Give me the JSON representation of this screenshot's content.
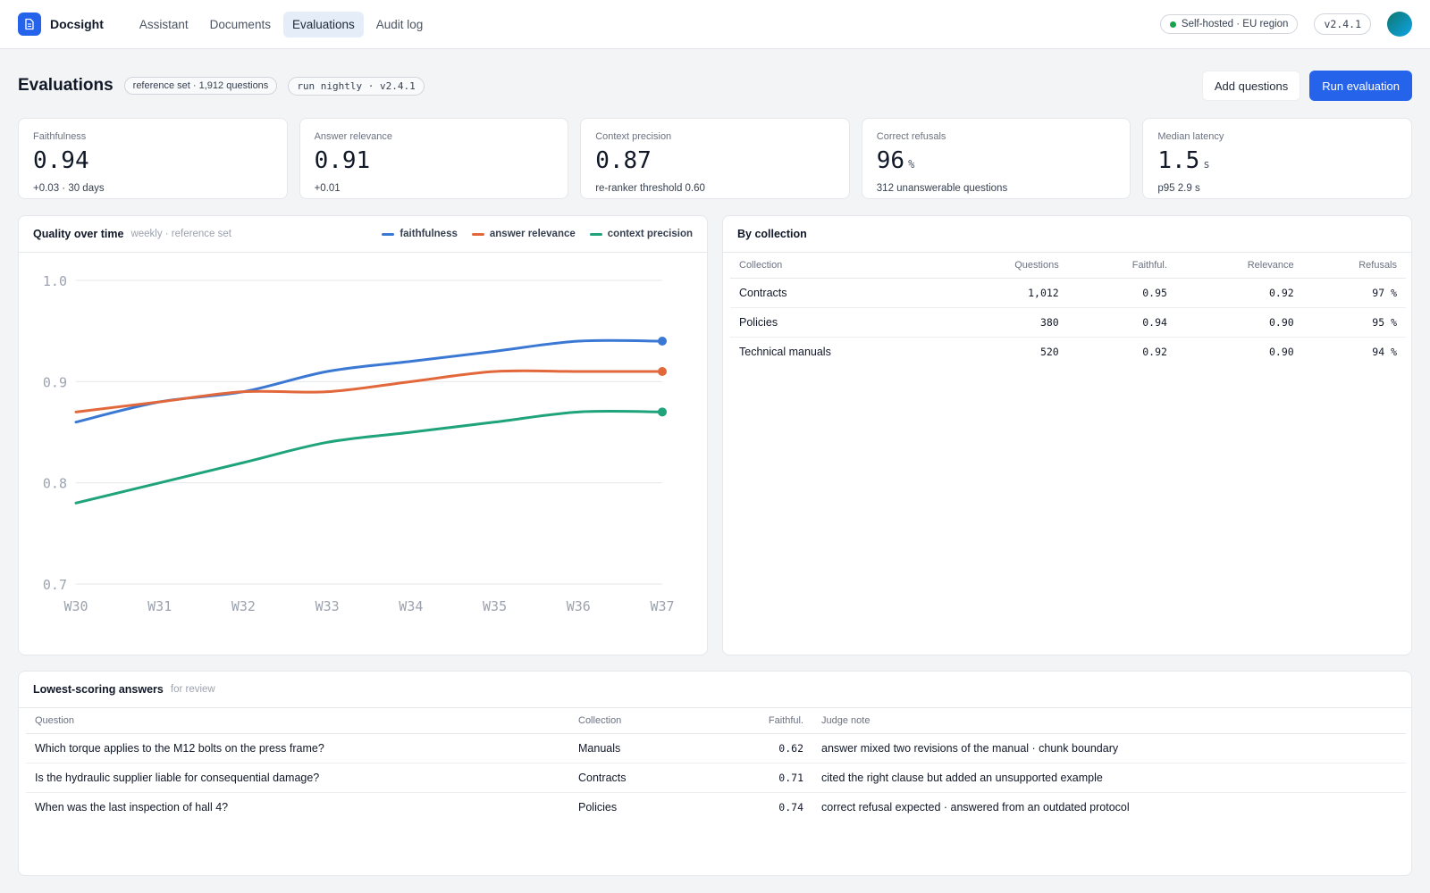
{
  "app": {
    "brand": "Docsight"
  },
  "nav": {
    "tabs": [
      {
        "label": "Assistant"
      },
      {
        "label": "Documents"
      },
      {
        "label": "Evaluations",
        "active": true
      },
      {
        "label": "Audit log"
      }
    ]
  },
  "topbar": {
    "region": "Self-hosted · EU region",
    "version": "v2.4.1"
  },
  "header": {
    "title": "Evaluations",
    "chip_reference": "reference set · 1,912 questions",
    "chip_run": "run nightly · v2.4.1",
    "add_label": "Add questions",
    "run_label": "Run evaluation"
  },
  "stats": [
    {
      "label": "Faithfulness",
      "value": "0.94",
      "unit": "",
      "sub": "+0.03 · 30 days"
    },
    {
      "label": "Answer relevance",
      "value": "0.91",
      "unit": "",
      "sub": "+0.01"
    },
    {
      "label": "Context precision",
      "value": "0.87",
      "unit": "",
      "sub": "re-ranker threshold 0.60"
    },
    {
      "label": "Correct refusals",
      "value": "96",
      "unit": "%",
      "sub": "312 unanswerable questions"
    },
    {
      "label": "Median latency",
      "value": "1.5",
      "unit": "s",
      "sub": "p95 2.9 s"
    }
  ],
  "quality": {
    "title": "Quality over time",
    "subtitle": "weekly · reference set"
  },
  "chart_data": {
    "type": "line",
    "x": [
      "W30",
      "W31",
      "W32",
      "W33",
      "W34",
      "W35",
      "W36",
      "W37"
    ],
    "ylim": [
      0.7,
      1.0
    ],
    "yticks": [
      "1.0",
      "0.9",
      "0.8",
      "0.7"
    ],
    "grid": true,
    "legend_position": "top-right",
    "series": [
      {
        "name": "faithfulness",
        "color": "#3a78d4",
        "values": [
          0.86,
          0.88,
          0.89,
          0.91,
          0.92,
          0.93,
          0.94,
          0.94
        ]
      },
      {
        "name": "answer relevance",
        "color": "#e2683c",
        "values": [
          0.87,
          0.88,
          0.89,
          0.89,
          0.9,
          0.91,
          0.91,
          0.91
        ]
      },
      {
        "name": "context precision",
        "color": "#1fa37a",
        "values": [
          0.78,
          0.8,
          0.82,
          0.84,
          0.85,
          0.86,
          0.87,
          0.87
        ]
      }
    ]
  },
  "collection": {
    "title": "By collection",
    "columns": [
      "Collection",
      "Questions",
      "Faithful.",
      "Relevance",
      "Refusals"
    ],
    "rows": [
      [
        "Contracts",
        "1,012",
        "0.95",
        "0.92",
        "97 %"
      ],
      [
        "Policies",
        "380",
        "0.94",
        "0.90",
        "95 %"
      ],
      [
        "Technical manuals",
        "520",
        "0.92",
        "0.90",
        "94 %"
      ]
    ]
  },
  "lowest": {
    "title": "Lowest-scoring answers",
    "subtitle": "for review",
    "columns": [
      "Question",
      "Collection",
      "Faithful.",
      "Judge note"
    ],
    "rows": [
      [
        "Which torque applies to the M12 bolts on the press frame?",
        "Manuals",
        "0.62",
        "answer mixed two revisions of the manual · chunk boundary"
      ],
      [
        "Is the hydraulic supplier liable for consequential damage?",
        "Contracts",
        "0.71",
        "cited the right clause but added an unsupported example"
      ],
      [
        "When was the last inspection of hall 4?",
        "Policies",
        "0.74",
        "correct refusal expected · answered from an outdated protocol"
      ]
    ]
  }
}
